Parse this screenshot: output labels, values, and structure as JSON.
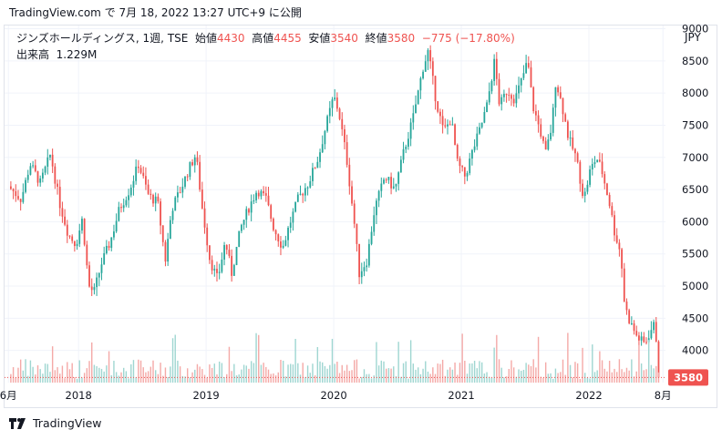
{
  "caption": "TradingView.com で 7月 18, 2022 13:27 UTC+9 に公開",
  "legend": {
    "name": "ジンズホールディングス, 1週, TSE",
    "open_label": "始値",
    "open": "4430",
    "high_label": "高値",
    "high": "4455",
    "low_label": "安値",
    "low": "3540",
    "close_label": "終値",
    "close": "3580",
    "change": "−775 (−17.80%)",
    "volume_label": "出来高",
    "volume": "1.229M"
  },
  "currency": "JPY",
  "footer": {
    "brand": "TradingView"
  },
  "colors": {
    "up": "#26a69a",
    "down": "#ef5350",
    "grid": "#f0f3fa",
    "vol_up": "#9fd6d1",
    "vol_down": "#f4a9a7"
  },
  "chart_data": {
    "type": "candlestick",
    "interval": "1週",
    "ylim": [
      3500,
      9050
    ],
    "y_ticks": [
      4000,
      4500,
      5000,
      5500,
      6000,
      6500,
      7000,
      7500,
      8000,
      8500,
      9000
    ],
    "x_ticks": [
      {
        "label": "6月",
        "t": 2017.45
      },
      {
        "label": "2018",
        "t": 2018.0
      },
      {
        "label": "2019",
        "t": 2019.0
      },
      {
        "label": "2020",
        "t": 2020.0
      },
      {
        "label": "2021",
        "t": 2021.0
      },
      {
        "label": "2022",
        "t": 2022.0
      },
      {
        "label": "8月",
        "t": 2022.58
      }
    ],
    "last_price": "3580",
    "last_price_value": 3580,
    "trend": [
      [
        2017.45,
        6550
      ],
      [
        2017.55,
        6350
      ],
      [
        2017.62,
        6900
      ],
      [
        2017.7,
        6600
      ],
      [
        2017.78,
        7050
      ],
      [
        2017.85,
        6300
      ],
      [
        2017.92,
        5800
      ],
      [
        2017.98,
        5650
      ],
      [
        2018.03,
        6050
      ],
      [
        2018.08,
        5000
      ],
      [
        2018.12,
        4900
      ],
      [
        2018.18,
        5350
      ],
      [
        2018.25,
        5700
      ],
      [
        2018.32,
        6200
      ],
      [
        2018.4,
        6500
      ],
      [
        2018.47,
        6900
      ],
      [
        2018.55,
        6400
      ],
      [
        2018.62,
        6300
      ],
      [
        2018.68,
        5400
      ],
      [
        2018.73,
        6200
      ],
      [
        2018.8,
        6500
      ],
      [
        2018.86,
        6800
      ],
      [
        2018.92,
        7050
      ],
      [
        2018.97,
        6200
      ],
      [
        2019.03,
        5400
      ],
      [
        2019.09,
        5100
      ],
      [
        2019.15,
        5700
      ],
      [
        2019.2,
        5200
      ],
      [
        2019.27,
        5900
      ],
      [
        2019.33,
        6200
      ],
      [
        2019.4,
        6500
      ],
      [
        2019.47,
        6350
      ],
      [
        2019.53,
        5900
      ],
      [
        2019.6,
        5600
      ],
      [
        2019.66,
        6000
      ],
      [
        2019.72,
        6350
      ],
      [
        2019.8,
        6600
      ],
      [
        2019.88,
        7000
      ],
      [
        2019.94,
        7500
      ],
      [
        2020.0,
        7950
      ],
      [
        2020.04,
        7700
      ],
      [
        2020.1,
        7000
      ],
      [
        2020.16,
        6000
      ],
      [
        2020.2,
        5200
      ],
      [
        2020.26,
        5400
      ],
      [
        2020.32,
        6200
      ],
      [
        2020.4,
        6700
      ],
      [
        2020.48,
        6500
      ],
      [
        2020.55,
        7100
      ],
      [
        2020.62,
        7600
      ],
      [
        2020.7,
        8400
      ],
      [
        2020.74,
        8650
      ],
      [
        2020.8,
        7900
      ],
      [
        2020.86,
        7400
      ],
      [
        2020.92,
        7600
      ],
      [
        2020.97,
        6900
      ],
      [
        2021.03,
        6700
      ],
      [
        2021.08,
        7050
      ],
      [
        2021.14,
        7400
      ],
      [
        2021.2,
        7800
      ],
      [
        2021.26,
        8500
      ],
      [
        2021.3,
        7800
      ],
      [
        2021.36,
        8050
      ],
      [
        2021.42,
        7900
      ],
      [
        2021.48,
        8250
      ],
      [
        2021.52,
        8500
      ],
      [
        2021.56,
        7800
      ],
      [
        2021.62,
        7400
      ],
      [
        2021.66,
        7050
      ],
      [
        2021.71,
        7500
      ],
      [
        2021.74,
        8200
      ],
      [
        2021.79,
        7800
      ],
      [
        2021.84,
        7300
      ],
      [
        2021.9,
        7000
      ],
      [
        2021.96,
        6350
      ],
      [
        2022.01,
        6800
      ],
      [
        2022.06,
        7000
      ],
      [
        2022.1,
        6800
      ],
      [
        2022.16,
        6300
      ],
      [
        2022.2,
        5850
      ],
      [
        2022.25,
        5500
      ],
      [
        2022.28,
        4700
      ],
      [
        2022.32,
        4450
      ],
      [
        2022.38,
        4200
      ],
      [
        2022.44,
        4100
      ],
      [
        2022.48,
        4300
      ],
      [
        2022.52,
        4420
      ],
      [
        2022.545,
        3580
      ]
    ]
  }
}
